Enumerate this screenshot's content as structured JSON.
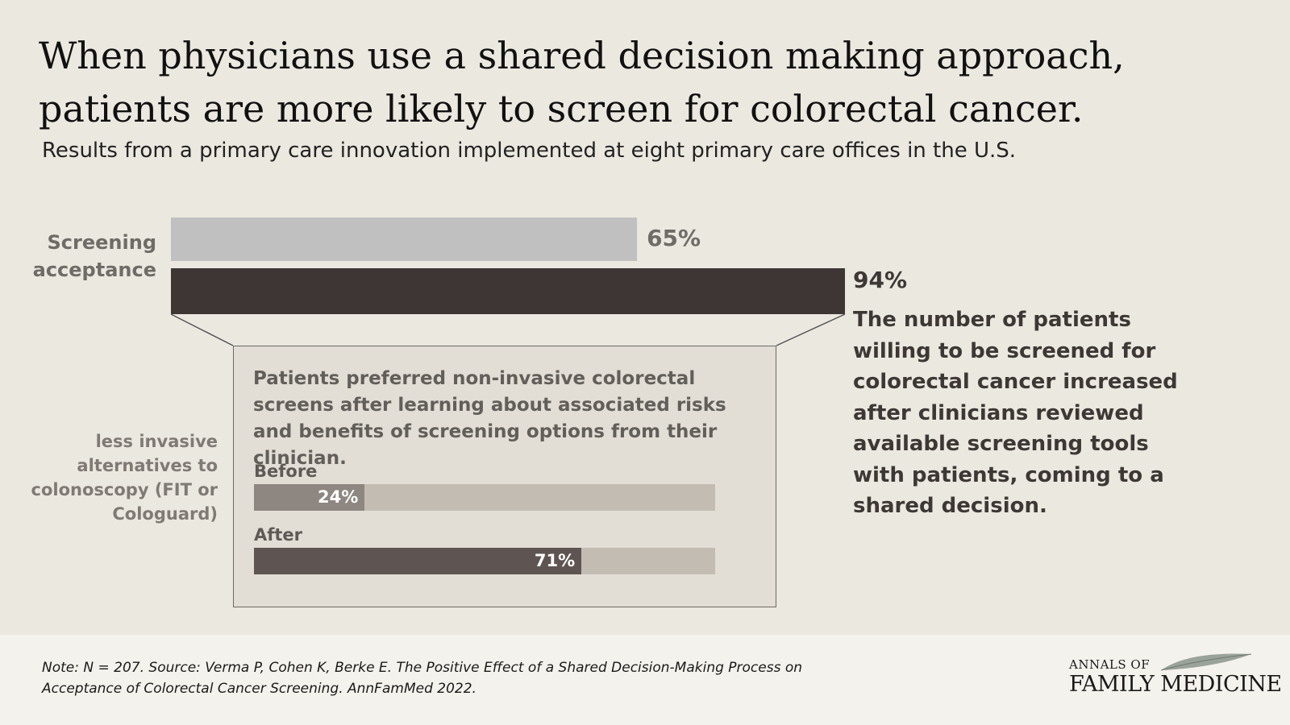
{
  "title": "When physicians use a shared decision making approach, patients are more likely to screen for colorectal cancer.",
  "subtitle": "Results from a primary care innovation implemented at eight primary care offices in the U.S.",
  "colors": {
    "background": "#ebe8e0",
    "bar_before": "#c0c0c0",
    "bar_after": "#3d3635",
    "mini_before": "#8e8680",
    "mini_after": "#5e5451",
    "mini_track": "#c2bcb3",
    "footer": "#f4f2ec"
  },
  "chart_data": [
    {
      "type": "bar",
      "orientation": "horizontal",
      "categories": [
        "Screening acceptance"
      ],
      "series": [
        {
          "values": [
            65
          ],
          "color": "#c0c0c0"
        },
        {
          "values": [
            94
          ],
          "color": "#3d3635"
        }
      ],
      "data_labels": [
        "65%",
        "94%"
      ],
      "xlim": [
        0,
        100
      ],
      "grid": false
    },
    {
      "type": "bar",
      "orientation": "horizontal",
      "categories": [
        "Before",
        "After"
      ],
      "values": [
        24,
        71
      ],
      "data_labels": [
        "24%",
        "71%"
      ],
      "xlim": [
        0,
        100
      ],
      "grid": false
    }
  ],
  "main_chart": {
    "label": "Screening acceptance"
  },
  "callout": {
    "side_label": "less  invasive alternatives to colonoscopy (FIT or Cologuard)",
    "text": "Patients preferred non-invasive colorectal screens after learning about associated risks and benefits of screening options from their clinician.",
    "before_label": "Before",
    "after_label": "After"
  },
  "description": "The number of patients willing to be screened for colorectal cancer increased after clinicians reviewed available screening tools with patients, coming to a shared decision.",
  "footer": {
    "note": "Note: N = 207. Source:  Verma P, Cohen K, Berke E. The Positive Effect of a Shared Decision-Making Process on Acceptance of Colorectal Cancer Screening. AnnFamMed 2022.",
    "logo_top": "ANNALS OF",
    "logo_bottom": "FAMILY MEDICINE"
  }
}
